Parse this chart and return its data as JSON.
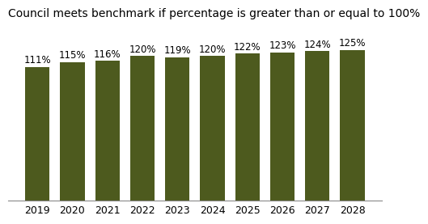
{
  "title": "Council meets benchmark if percentage is greater than or equal to 100%",
  "categories": [
    "2019",
    "2020",
    "2021",
    "2022",
    "2023",
    "2024",
    "2025",
    "2026",
    "2027",
    "2028"
  ],
  "values": [
    111,
    115,
    116,
    120,
    119,
    120,
    122,
    123,
    124,
    125
  ],
  "labels": [
    "111%",
    "115%",
    "116%",
    "120%",
    "119%",
    "120%",
    "122%",
    "123%",
    "124%",
    "125%"
  ],
  "bar_color": "#4d5a1e",
  "background_color": "#ffffff",
  "title_fontsize": 10,
  "label_fontsize": 8.5,
  "tick_fontsize": 9,
  "ylim": [
    0,
    145
  ]
}
